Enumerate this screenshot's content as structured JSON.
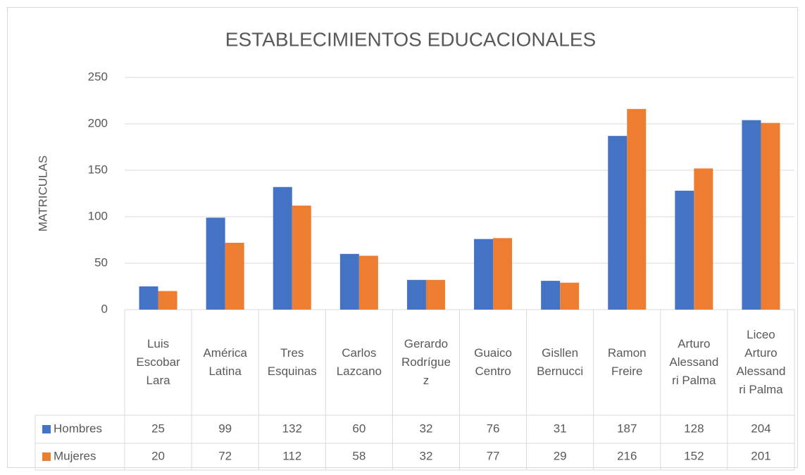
{
  "chart_data": {
    "type": "bar",
    "title": "ESTABLECIMIENTOS EDUCACIONALES",
    "y_label": "MATRICULAS",
    "categories": [
      "Luis Escobar Lara",
      "América Latina",
      "Tres Esquinas",
      "Carlos Lazcano",
      "Gerardo Rodríguez",
      "Guaico Centro",
      "Gisllen Bernucci",
      "Ramon Freire",
      "Arturo Alessandri Palma",
      "Liceo Arturo Alessandri Palma"
    ],
    "series": [
      {
        "name": "Hombres",
        "color": "#4472c4",
        "values": [
          25,
          99,
          132,
          60,
          32,
          76,
          31,
          187,
          128,
          204
        ]
      },
      {
        "name": "Mujeres",
        "color": "#ed7d31",
        "values": [
          20,
          72,
          112,
          58,
          32,
          77,
          29,
          216,
          152,
          201
        ]
      }
    ],
    "ylim": [
      0,
      250
    ],
    "yticks": [
      0,
      50,
      100,
      150,
      200,
      250
    ],
    "grid": true,
    "data_table": true
  }
}
